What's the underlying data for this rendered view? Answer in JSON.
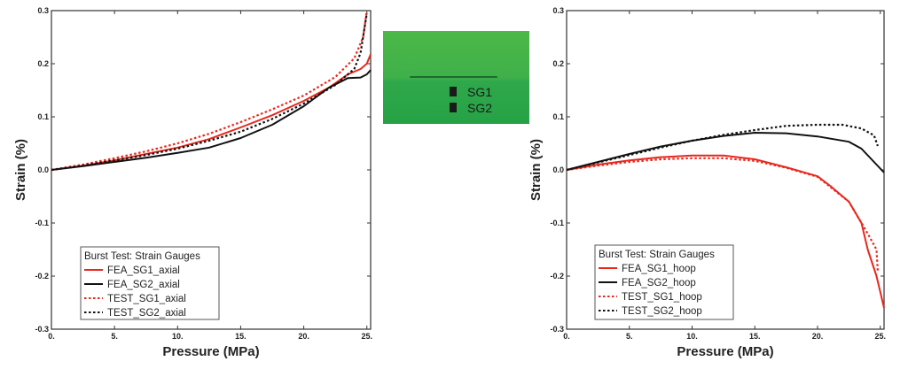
{
  "chart_data": [
    {
      "type": "line",
      "title": "",
      "xlabel": "Pressure (MPa)",
      "ylabel": "Strain (%)",
      "xlim": [
        0,
        25.3
      ],
      "ylim": [
        -0.3,
        0.3
      ],
      "xticks": [
        "0.",
        "5.",
        "10.",
        "15.",
        "20.",
        "25."
      ],
      "xtick_values": [
        0,
        5,
        10,
        15,
        20,
        25
      ],
      "yticks": [
        "0.3",
        "0.2",
        "0.1",
        "0.0",
        "-0.1",
        "-0.2",
        "-0.3"
      ],
      "ytick_values": [
        0.3,
        0.2,
        0.1,
        0,
        -0.1,
        -0.2,
        -0.3
      ],
      "legend_title": "Burst Test:  Strain Gauges",
      "legend_placement": "lower-left",
      "grid": false,
      "series": [
        {
          "name": "FEA_SG1_axial",
          "color": "#e8281e",
          "style": "solid",
          "x": [
            0,
            2.5,
            5,
            7.5,
            10,
            12.5,
            15,
            17.5,
            20,
            22,
            23.5,
            24.5,
            25,
            25.3
          ],
          "y": [
            0,
            0.008,
            0.018,
            0.03,
            0.042,
            0.058,
            0.08,
            0.103,
            0.13,
            0.155,
            0.18,
            0.19,
            0.2,
            0.218
          ]
        },
        {
          "name": "FEA_SG2_axial",
          "color": "#111111",
          "style": "solid",
          "x": [
            0,
            2.5,
            5,
            7.5,
            10,
            12.5,
            15,
            17.5,
            20,
            22,
            23.5,
            24.5,
            25,
            25.3
          ],
          "y": [
            0,
            0.007,
            0.015,
            0.023,
            0.032,
            0.042,
            0.06,
            0.085,
            0.12,
            0.155,
            0.173,
            0.174,
            0.18,
            0.188
          ]
        },
        {
          "name": "TEST_SG1_axial",
          "color": "#e8281e",
          "style": "dotted",
          "x": [
            0,
            2.5,
            5,
            7.5,
            10,
            12.5,
            15,
            17.5,
            20,
            22.5,
            24,
            24.7,
            25
          ],
          "y": [
            0,
            0.01,
            0.022,
            0.035,
            0.05,
            0.068,
            0.09,
            0.114,
            0.14,
            0.175,
            0.21,
            0.25,
            0.3
          ]
        },
        {
          "name": "TEST_SG2_axial",
          "color": "#111111",
          "style": "dotted",
          "x": [
            0,
            2.5,
            5,
            7.5,
            10,
            12.5,
            15,
            17.5,
            20,
            22.5,
            24,
            24.5,
            25
          ],
          "y": [
            0,
            0.008,
            0.018,
            0.028,
            0.04,
            0.055,
            0.072,
            0.096,
            0.125,
            0.16,
            0.19,
            0.22,
            0.295
          ]
        }
      ]
    },
    {
      "type": "line",
      "title": "",
      "xlabel": "Pressure (MPa)",
      "ylabel": "Strain (%)",
      "xlim": [
        0,
        25.3
      ],
      "ylim": [
        -0.3,
        0.3
      ],
      "xticks": [
        "0.",
        "5.",
        "10.",
        "15.",
        "20.",
        "25."
      ],
      "xtick_values": [
        0,
        5,
        10,
        15,
        20,
        25
      ],
      "yticks": [
        "0.3",
        "0.2",
        "0.1",
        "0.0",
        "-0.1",
        "-0.2",
        "-0.3"
      ],
      "ytick_values": [
        0.3,
        0.2,
        0.1,
        0,
        -0.1,
        -0.2,
        -0.3
      ],
      "legend_title": "Burst Test:  Strain Gauges",
      "legend_placement": "lower-left",
      "grid": false,
      "series": [
        {
          "name": "FEA_SG1_hoop",
          "color": "#e8281e",
          "style": "solid",
          "x": [
            0,
            2.5,
            5,
            7.5,
            10,
            12.5,
            15,
            17.5,
            20,
            21,
            22.5,
            23.5,
            24,
            24.7,
            25.3
          ],
          "y": [
            0,
            0.01,
            0.018,
            0.024,
            0.027,
            0.027,
            0.02,
            0.005,
            -0.012,
            -0.03,
            -0.06,
            -0.1,
            -0.15,
            -0.2,
            -0.26
          ]
        },
        {
          "name": "FEA_SG2_hoop",
          "color": "#111111",
          "style": "solid",
          "x": [
            0,
            2.5,
            5,
            7.5,
            10,
            12.5,
            15,
            17.5,
            20,
            22.5,
            23.5,
            25.3
          ],
          "y": [
            0,
            0.015,
            0.03,
            0.044,
            0.055,
            0.064,
            0.07,
            0.069,
            0.063,
            0.053,
            0.04,
            -0.005
          ]
        },
        {
          "name": "TEST_SG1_hoop",
          "color": "#e8281e",
          "style": "dotted",
          "x": [
            0,
            2.5,
            5,
            7.5,
            10,
            12.5,
            15,
            17.5,
            20,
            22.5,
            24,
            24.7,
            24.8
          ],
          "y": [
            0,
            0.008,
            0.015,
            0.02,
            0.022,
            0.022,
            0.017,
            0.004,
            -0.013,
            -0.06,
            -0.12,
            -0.15,
            -0.19
          ]
        },
        {
          "name": "TEST_SG2_hoop",
          "color": "#111111",
          "style": "dotted",
          "x": [
            0,
            2.5,
            5,
            7.5,
            10,
            12.5,
            15,
            17.5,
            20,
            22,
            23.5,
            24.5,
            24.8
          ],
          "y": [
            0,
            0.014,
            0.028,
            0.042,
            0.055,
            0.066,
            0.075,
            0.083,
            0.085,
            0.085,
            0.078,
            0.065,
            0.045
          ]
        }
      ]
    }
  ],
  "inset": {
    "labels": [
      "SG1",
      "SG2"
    ],
    "background": "#3db34a"
  }
}
